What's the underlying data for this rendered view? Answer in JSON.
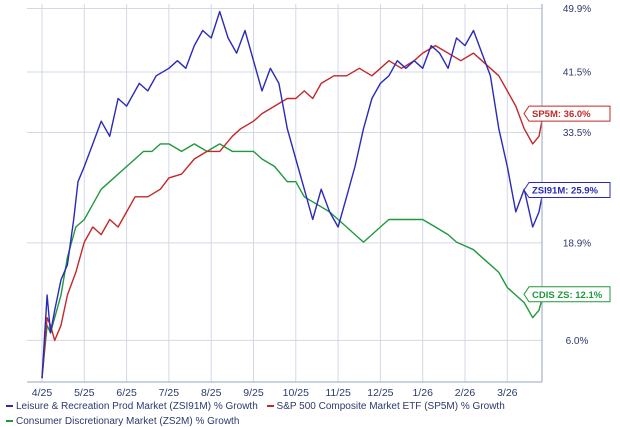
{
  "chart_data": {
    "type": "line",
    "y_ticks": [
      "49.9%",
      "41.5%",
      "33.5%",
      "18.9%",
      "6.0%"
    ],
    "y_tick_values": [
      49.9,
      41.5,
      33.5,
      18.9,
      6.0
    ],
    "x_ticks": [
      "4/25",
      "5/25",
      "6/25",
      "7/25",
      "8/25",
      "9/25",
      "10/25",
      "11/25",
      "12/25",
      "1/26",
      "2/26",
      "3/26"
    ],
    "ylim": [
      0.5,
      50.5
    ],
    "grid": true,
    "legend_placement": "bottom",
    "series": [
      {
        "name": "Leisure & Recreation Prod Market (ZSI91M) % Growth",
        "tag": "ZSI91M: 25.9%",
        "end_value": 25.9,
        "color": "#2a2ab8",
        "values": [
          [
            0,
            1
          ],
          [
            0.12,
            12
          ],
          [
            0.2,
            7
          ],
          [
            0.3,
            10
          ],
          [
            0.45,
            14
          ],
          [
            0.6,
            16
          ],
          [
            0.75,
            22
          ],
          [
            0.85,
            27
          ],
          [
            1,
            29
          ],
          [
            1.2,
            32
          ],
          [
            1.4,
            35
          ],
          [
            1.6,
            33
          ],
          [
            1.8,
            38
          ],
          [
            2,
            37
          ],
          [
            2.3,
            40
          ],
          [
            2.5,
            39
          ],
          [
            2.7,
            41
          ],
          [
            3,
            42
          ],
          [
            3.2,
            43
          ],
          [
            3.4,
            42
          ],
          [
            3.6,
            45
          ],
          [
            3.8,
            47
          ],
          [
            4,
            46
          ],
          [
            4.2,
            49.5
          ],
          [
            4.4,
            46
          ],
          [
            4.6,
            44
          ],
          [
            4.8,
            47
          ],
          [
            5,
            43
          ],
          [
            5.2,
            39
          ],
          [
            5.4,
            42
          ],
          [
            5.6,
            40
          ],
          [
            5.8,
            34
          ],
          [
            6,
            30
          ],
          [
            6.2,
            26
          ],
          [
            6.4,
            22
          ],
          [
            6.6,
            26
          ],
          [
            6.8,
            23
          ],
          [
            7,
            21
          ],
          [
            7.2,
            25
          ],
          [
            7.4,
            29
          ],
          [
            7.6,
            34
          ],
          [
            7.8,
            38
          ],
          [
            8,
            40
          ],
          [
            8.2,
            41
          ],
          [
            8.4,
            43
          ],
          [
            8.6,
            42
          ],
          [
            8.8,
            43
          ],
          [
            9,
            42
          ],
          [
            9.2,
            45
          ],
          [
            9.4,
            44
          ],
          [
            9.6,
            42
          ],
          [
            9.8,
            46
          ],
          [
            10,
            45
          ],
          [
            10.2,
            47
          ],
          [
            10.4,
            44
          ],
          [
            10.6,
            41
          ],
          [
            10.8,
            34
          ],
          [
            11,
            29
          ],
          [
            11.2,
            23
          ],
          [
            11.4,
            26
          ],
          [
            11.6,
            21
          ],
          [
            11.75,
            23
          ],
          [
            11.85,
            25.9
          ]
        ]
      },
      {
        "name": "S&P 500 Composite Market ETF (SP5M) % Growth",
        "tag": "SP5M: 36.0%",
        "end_value": 36.0,
        "color": "#c42828",
        "values": [
          [
            0,
            1
          ],
          [
            0.12,
            9
          ],
          [
            0.2,
            8
          ],
          [
            0.3,
            6
          ],
          [
            0.45,
            8
          ],
          [
            0.6,
            12
          ],
          [
            0.8,
            15
          ],
          [
            1,
            19
          ],
          [
            1.2,
            21
          ],
          [
            1.4,
            20
          ],
          [
            1.6,
            22
          ],
          [
            1.8,
            21
          ],
          [
            2,
            23
          ],
          [
            2.2,
            25
          ],
          [
            2.5,
            25
          ],
          [
            2.8,
            26
          ],
          [
            3,
            27.5
          ],
          [
            3.3,
            28
          ],
          [
            3.6,
            30
          ],
          [
            3.9,
            31
          ],
          [
            4.2,
            31
          ],
          [
            4.5,
            33
          ],
          [
            4.7,
            34
          ],
          [
            5,
            35
          ],
          [
            5.2,
            36
          ],
          [
            5.5,
            37
          ],
          [
            5.8,
            38
          ],
          [
            6,
            38
          ],
          [
            6.2,
            39
          ],
          [
            6.4,
            38
          ],
          [
            6.6,
            40
          ],
          [
            6.9,
            41
          ],
          [
            7.2,
            41
          ],
          [
            7.5,
            42
          ],
          [
            7.8,
            41
          ],
          [
            8,
            42
          ],
          [
            8.2,
            43
          ],
          [
            8.5,
            42
          ],
          [
            8.8,
            43
          ],
          [
            9,
            44
          ],
          [
            9.3,
            45
          ],
          [
            9.6,
            44
          ],
          [
            9.9,
            43
          ],
          [
            10.2,
            44
          ],
          [
            10.4,
            43
          ],
          [
            10.6,
            42
          ],
          [
            10.8,
            41
          ],
          [
            11,
            39
          ],
          [
            11.2,
            37
          ],
          [
            11.4,
            34
          ],
          [
            11.6,
            32
          ],
          [
            11.75,
            33
          ],
          [
            11.85,
            36.0
          ]
        ]
      },
      {
        "name": "Consumer Discretionary Market (ZS2M) % Growth",
        "tag": "CDIS ZS: 12.1%",
        "end_value": 12.1,
        "color": "#1e9a3c",
        "values": [
          [
            0,
            1
          ],
          [
            0.12,
            8
          ],
          [
            0.2,
            7
          ],
          [
            0.3,
            9
          ],
          [
            0.45,
            12
          ],
          [
            0.6,
            17
          ],
          [
            0.8,
            21
          ],
          [
            1,
            22
          ],
          [
            1.2,
            24
          ],
          [
            1.4,
            26
          ],
          [
            1.6,
            27
          ],
          [
            1.8,
            28
          ],
          [
            2,
            29
          ],
          [
            2.2,
            30
          ],
          [
            2.4,
            31
          ],
          [
            2.6,
            31
          ],
          [
            2.8,
            32
          ],
          [
            3,
            32
          ],
          [
            3.3,
            31
          ],
          [
            3.6,
            32
          ],
          [
            3.9,
            31
          ],
          [
            4.2,
            32
          ],
          [
            4.5,
            31
          ],
          [
            4.8,
            31
          ],
          [
            5,
            31
          ],
          [
            5.2,
            30
          ],
          [
            5.5,
            29
          ],
          [
            5.8,
            27
          ],
          [
            6,
            27
          ],
          [
            6.2,
            25
          ],
          [
            6.5,
            24
          ],
          [
            6.8,
            23
          ],
          [
            7,
            22
          ],
          [
            7.2,
            21
          ],
          [
            7.4,
            20
          ],
          [
            7.6,
            19
          ],
          [
            7.8,
            20
          ],
          [
            8,
            21
          ],
          [
            8.2,
            22
          ],
          [
            8.5,
            22
          ],
          [
            8.8,
            22
          ],
          [
            9,
            22
          ],
          [
            9.3,
            21
          ],
          [
            9.6,
            20
          ],
          [
            9.8,
            19
          ],
          [
            10,
            18.5
          ],
          [
            10.2,
            18
          ],
          [
            10.4,
            17
          ],
          [
            10.6,
            16
          ],
          [
            10.8,
            15
          ],
          [
            11,
            13
          ],
          [
            11.2,
            12
          ],
          [
            11.4,
            11
          ],
          [
            11.6,
            9
          ],
          [
            11.75,
            10
          ],
          [
            11.85,
            12.1
          ]
        ]
      }
    ]
  }
}
